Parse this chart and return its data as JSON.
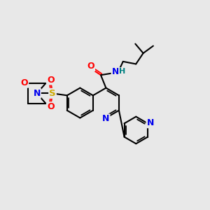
{
  "bg_color": "#e8e8e8",
  "colors": {
    "O": "#ff0000",
    "N": "#0000ee",
    "S": "#ccaa00",
    "H": "#008080",
    "C": "#000000"
  },
  "lw": 1.5,
  "fs": 8.0
}
